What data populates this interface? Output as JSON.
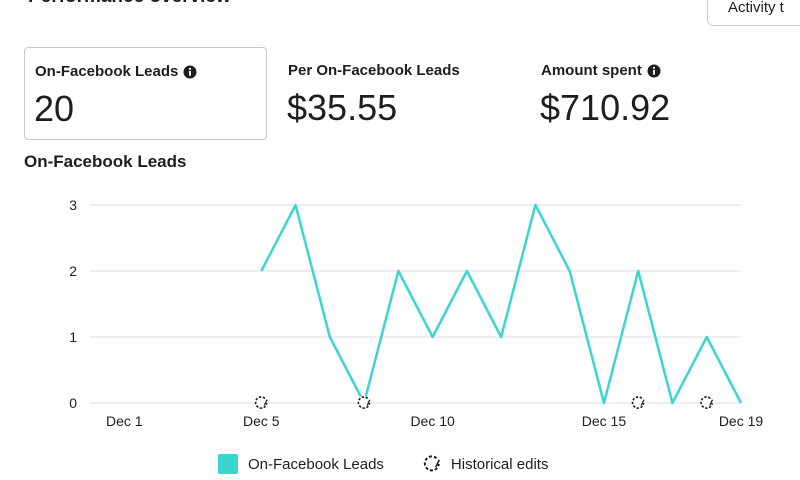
{
  "header": {
    "title": "Performance overview",
    "activity_button": "Activity t"
  },
  "metrics": [
    {
      "label": "On-Facebook Leads",
      "value": "20",
      "info": true
    },
    {
      "label": "Per On-Facebook Leads",
      "value": "$35.55",
      "info": false
    },
    {
      "label": "Amount spent",
      "value": "$710.92",
      "info": true
    }
  ],
  "colors": {
    "series": "#3cd6d1",
    "grid": "#dadde1",
    "text": "#1c1e21"
  },
  "chart_data": {
    "type": "line",
    "title": "On-Facebook Leads",
    "y_ticks": [
      "0",
      "1",
      "2",
      "3"
    ],
    "ylim": [
      0,
      3
    ],
    "x_ticks": [
      "Dec 1",
      "Dec 5",
      "Dec 10",
      "Dec 15",
      "Dec 19"
    ],
    "x_tick_days": [
      1,
      5,
      10,
      15,
      19
    ],
    "x_range_days": [
      0,
      19
    ],
    "grid": true,
    "legend_position": "bottom",
    "series": [
      {
        "name": "On-Facebook Leads",
        "x_days": [
          5,
          6,
          7,
          8,
          9,
          10,
          11,
          12,
          13,
          14,
          15,
          16,
          17,
          18,
          19
        ],
        "values": [
          2,
          3,
          1,
          0,
          2,
          1,
          2,
          1,
          3,
          2,
          0,
          2,
          0,
          1,
          0
        ]
      }
    ],
    "historical_edit_days": [
      5,
      8,
      16,
      18
    ],
    "legend": {
      "series_label": "On-Facebook Leads",
      "edits_label": "Historical edits"
    }
  }
}
